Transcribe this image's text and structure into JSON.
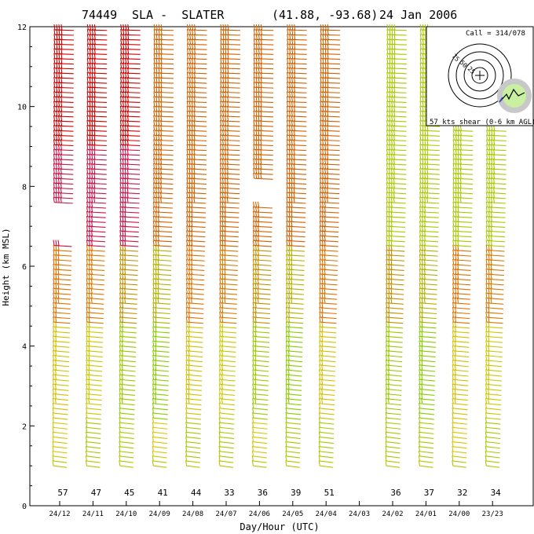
{
  "chart_data": {
    "type": "wind-profile",
    "header": {
      "station_id": "74449",
      "station_name": "SLA -  SLATER",
      "coords": "(41.88, -93.68)",
      "date": "24 Jan 2006"
    },
    "xlabel": "Day/Hour (UTC)",
    "ylabel": "Height (km MSL)",
    "ylim": [
      0,
      12
    ],
    "y_ticks": [
      "0",
      "2",
      "4",
      "6",
      "8",
      "10",
      "12"
    ],
    "columns": [
      {
        "time": "24/12",
        "count": "57",
        "present": true,
        "tops": 12.0,
        "gap": [
          6.6,
          7.5
        ]
      },
      {
        "time": "24/11",
        "count": "47",
        "present": true,
        "tops": 12.0,
        "gap": null
      },
      {
        "time": "24/10",
        "count": "45",
        "present": true,
        "tops": 12.0,
        "gap": null
      },
      {
        "time": "24/09",
        "count": "41",
        "present": true,
        "tops": 12.0,
        "gap": null
      },
      {
        "time": "24/08",
        "count": "44",
        "present": true,
        "tops": 12.0,
        "gap": null
      },
      {
        "time": "24/07",
        "count": "33",
        "present": true,
        "tops": 12.0,
        "gap": null
      },
      {
        "time": "24/06",
        "count": "36",
        "present": true,
        "tops": 12.0,
        "gap": [
          7.6,
          8.1
        ]
      },
      {
        "time": "24/05",
        "count": "39",
        "present": true,
        "tops": 12.0,
        "gap": null
      },
      {
        "time": "24/04",
        "count": "51",
        "present": true,
        "tops": 12.0,
        "gap": null
      },
      {
        "time": "24/03",
        "count": "",
        "present": false,
        "tops": 0,
        "gap": null
      },
      {
        "time": "24/02",
        "count": "36",
        "present": true,
        "tops": 12.0,
        "gap": null
      },
      {
        "time": "24/01",
        "count": "37",
        "present": true,
        "tops": 12.0,
        "gap": null
      },
      {
        "time": "24/00",
        "count": "32",
        "present": true,
        "tops": 9.5,
        "gap": null
      },
      {
        "time": "23/23",
        "count": "34",
        "present": true,
        "tops": 9.5,
        "gap": null
      }
    ],
    "hodograph": {
      "call_text": "Call = 314/078",
      "shear_text": "57 kts shear (0-6 km AGL)",
      "ring_labels": [
        "75",
        "50",
        "25"
      ]
    }
  }
}
